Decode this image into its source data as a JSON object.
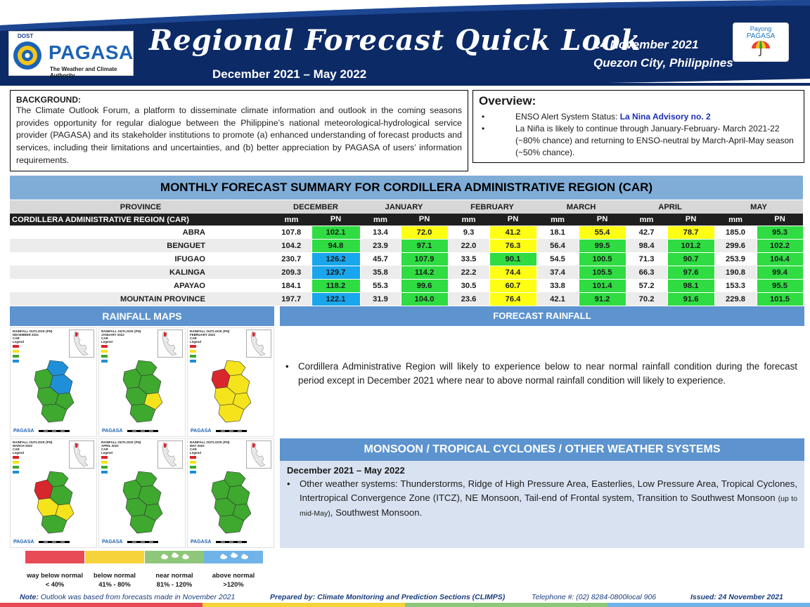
{
  "header": {
    "logo_dost": "DOST",
    "logo_name": "PAGASA",
    "logo_tagline": "The Weather and Climate Authority",
    "title": "Regional Forecast Quick Look",
    "subtitle": "December 2021 – May 2022",
    "date": "24 November  2021",
    "place": "Quezon  City, Philippines",
    "payong_line1": "Payong",
    "payong_line2": "PAGASA",
    "colors": {
      "banner": "#0c2a66",
      "accent_bar": "#2a5bb0"
    }
  },
  "background": {
    "heading": "BACKGROUND:",
    "text": "The Climate Outlook Forum, a platform to disseminate climate information and outlook in the coming seasons provides opportunity for regular dialogue between the Philippine’s national meteorological-hydrological service provider (PAGASA) and its stakeholder institutions to promote (a) enhanced understanding of forecast products and services, including their limitations and uncertainties, and (b) better appreciation by PAGASA of users’ information requirements."
  },
  "overview": {
    "heading": "Overview:",
    "item1_prefix": "ENSO Alert System Status: ",
    "item1_highlight": "La Nina Advisory no. 2",
    "item2": "La Niña is likely to continue through January-February- March 2021-22 (~80% chance) and returning to ENSO-neutral by March-April-May season (~50% chance)."
  },
  "table": {
    "title": "MONTHLY FORECAST SUMMARY FOR CORDILLERA ADMINISTRATIVE REGION (CAR)",
    "province_header": "PROVINCE",
    "region_label": "CORDILLERA ADMINISTRATIVE REGION (CAR)",
    "months": [
      "DECEMBER",
      "JANUARY",
      "FEBRUARY",
      "MARCH",
      "APRIL",
      "MAY"
    ],
    "sub_mm": "mm",
    "sub_pn": "PN",
    "rows": [
      {
        "province": "ABRA",
        "values": [
          [
            "107.8",
            "102.1",
            "green"
          ],
          [
            "13.4",
            "72.0",
            "yellow"
          ],
          [
            "9.3",
            "41.2",
            "yellow"
          ],
          [
            "18.1",
            "55.4",
            "yellow"
          ],
          [
            "42.7",
            "78.7",
            "yellow"
          ],
          [
            "185.0",
            "95.3",
            "green"
          ]
        ]
      },
      {
        "province": "BENGUET",
        "values": [
          [
            "104.2",
            "94.8",
            "green"
          ],
          [
            "23.9",
            "97.1",
            "green"
          ],
          [
            "22.0",
            "76.3",
            "yellow"
          ],
          [
            "56.4",
            "99.5",
            "green"
          ],
          [
            "98.4",
            "101.2",
            "green"
          ],
          [
            "299.6",
            "102.2",
            "green"
          ]
        ]
      },
      {
        "province": "IFUGAO",
        "values": [
          [
            "230.7",
            "126.2",
            "blue"
          ],
          [
            "45.7",
            "107.9",
            "green"
          ],
          [
            "33.5",
            "90.1",
            "green"
          ],
          [
            "54.5",
            "100.5",
            "green"
          ],
          [
            "71.3",
            "90.7",
            "green"
          ],
          [
            "253.9",
            "104.4",
            "green"
          ]
        ]
      },
      {
        "province": "KALINGA",
        "values": [
          [
            "209.3",
            "129.7",
            "blue"
          ],
          [
            "35.8",
            "114.2",
            "green"
          ],
          [
            "22.2",
            "74.4",
            "yellow"
          ],
          [
            "37.4",
            "105.5",
            "green"
          ],
          [
            "66.3",
            "97.6",
            "green"
          ],
          [
            "190.8",
            "99.4",
            "green"
          ]
        ]
      },
      {
        "province": "APAYAO",
        "values": [
          [
            "184.1",
            "118.2",
            "green"
          ],
          [
            "55.3",
            "99.6",
            "green"
          ],
          [
            "30.5",
            "60.7",
            "yellow"
          ],
          [
            "33.8",
            "101.4",
            "green"
          ],
          [
            "57.2",
            "98.1",
            "green"
          ],
          [
            "153.3",
            "95.5",
            "green"
          ]
        ]
      },
      {
        "province": "MOUNTAIN PROVINCE",
        "values": [
          [
            "197.7",
            "122.1",
            "blue"
          ],
          [
            "31.9",
            "104.0",
            "green"
          ],
          [
            "23.6",
            "76.4",
            "yellow"
          ],
          [
            "42.1",
            "91.2",
            "green"
          ],
          [
            "70.2",
            "91.6",
            "green"
          ],
          [
            "229.8",
            "101.5",
            "green"
          ]
        ]
      }
    ],
    "colors": {
      "green": "#2fdc42",
      "yellow": "#ffff14",
      "blue": "#1aa6ec"
    }
  },
  "maps": {
    "heading": "RAINFALL MAPS",
    "panels": [
      {
        "title": "RAINFALL OUTLOOK (PN)\nDECEMBER 2021\nCAR",
        "legend": "Legend",
        "scheme": "dec"
      },
      {
        "title": "RAINFALL OUTLOOK (PN)\nJANUARY 2022\nCAR",
        "legend": "Legend",
        "scheme": "jan"
      },
      {
        "title": "RAINFALL OUTLOOK (PN)\nFEBRUARY 2022\nCAR",
        "legend": "Legend",
        "scheme": "feb"
      },
      {
        "title": "RAINFALL OUTLOOK (PN)\nMARCH 2022\nCAR",
        "legend": "Legend",
        "scheme": "mar"
      },
      {
        "title": "RAINFALL OUTLOOK (PN)\nAPRIL 2022\nCAR",
        "legend": "Legend",
        "scheme": "apr"
      },
      {
        "title": "RAINFALL OUTLOOK (PN)\nMAY 2022\nCAR",
        "legend": "Legend",
        "scheme": "may"
      }
    ],
    "mini_logo": "PAGASA",
    "categories": [
      {
        "label": "way below normal",
        "range": "< 40%",
        "color": "#e84a56"
      },
      {
        "label": "below normal",
        "range": "41% - 80%",
        "color": "#f6d33a"
      },
      {
        "label": "near normal",
        "range": "81% - 120%",
        "color": "#8ec77a"
      },
      {
        "label": "above normal",
        "range": ">120%",
        "color": "#6fb3e8"
      }
    ]
  },
  "forecast_rainfall": {
    "heading": "FORECAST RAINFALL",
    "text": "Cordillera Administrative Region will likely to experience below  to near normal rainfall condition during the forecast period except in December 2021 where near to above normal rainfall condition will likely to experience."
  },
  "monsoon": {
    "heading": "MONSOON / TROPICAL CYCLONES / OTHER WEATHER SYSTEMS",
    "period": "December 2021 – May 2022",
    "text_main": "Other weather systems: Thunderstorms,  Ridge of High Pressure Area,  Easterlies, Low Pressure Area, Tropical Cyclones, Intertropical Convergence Zone (ITCZ), NE Monsoon, Tail-end of Frontal system, Transition to Southwest Monsoon ",
    "text_small": "(up to mid-May)",
    "text_end": ", Southwest Monsoon."
  },
  "footer": {
    "note_label": "Note:",
    "note_text": " Outlook was based from forecasts made in November 2021",
    "prepared": "Prepared by: Climate Monitoring and Prediction Sections (CLIMPS)",
    "telephone": "Telephone #: (02) 8284-0800local 906",
    "issued": "Issued: 24 November 2021"
  }
}
